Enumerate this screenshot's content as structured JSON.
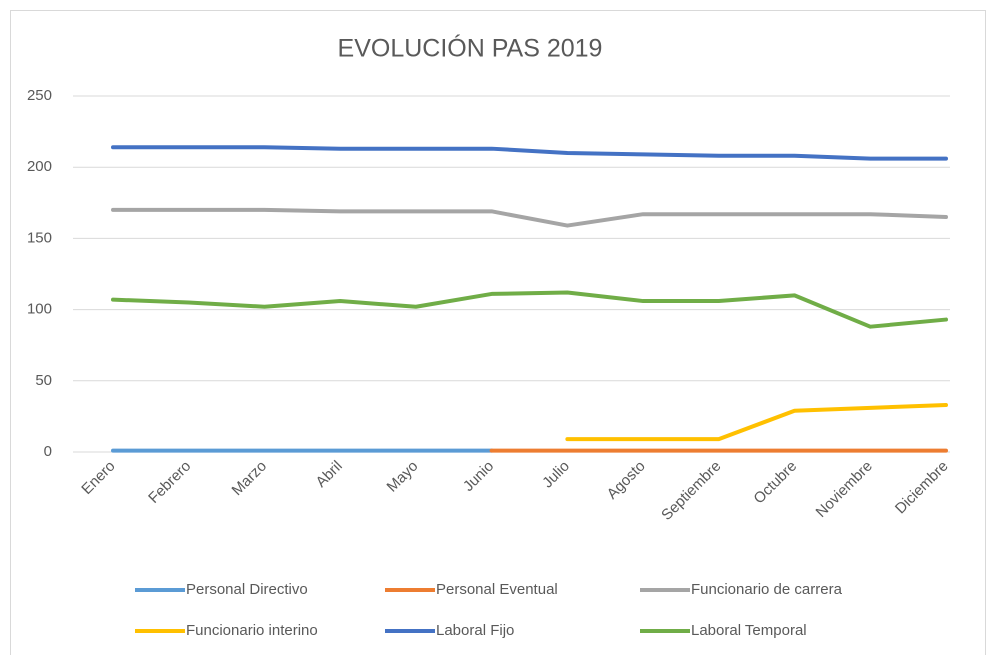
{
  "chart_data": {
    "type": "line",
    "title": "EVOLUCIÓN PAS 2019",
    "categories": [
      "Enero",
      "Febrero",
      "Marzo",
      "Abril",
      "Mayo",
      "Junio",
      "Julio",
      "Agosto",
      "Septiembre",
      "Octubre",
      "Noviembre",
      "Diciembre"
    ],
    "series": [
      {
        "name": "Personal Directivo",
        "color": "#5b9bd5",
        "values": [
          1,
          1,
          1,
          1,
          1,
          1,
          null,
          null,
          null,
          null,
          null,
          null
        ]
      },
      {
        "name": "Personal Eventual",
        "color": "#ed7d31",
        "values": [
          null,
          null,
          null,
          null,
          null,
          1,
          1,
          1,
          1,
          1,
          1,
          1
        ]
      },
      {
        "name": "Funcionario de carrera",
        "color": "#a5a5a5",
        "values": [
          170,
          170,
          170,
          169,
          169,
          169,
          159,
          167,
          167,
          167,
          167,
          165
        ]
      },
      {
        "name": "Funcionario interino",
        "color": "#ffc000",
        "values": [
          null,
          null,
          null,
          null,
          null,
          null,
          9,
          9,
          9,
          29,
          31,
          33
        ]
      },
      {
        "name": "Laboral Fijo",
        "color": "#4472c4",
        "values": [
          214,
          214,
          214,
          213,
          213,
          213,
          210,
          209,
          208,
          208,
          206,
          206
        ]
      },
      {
        "name": "Laboral Temporal",
        "color": "#70ad47",
        "values": [
          107,
          105,
          102,
          106,
          102,
          111,
          112,
          106,
          106,
          110,
          88,
          93
        ]
      }
    ],
    "ylim": [
      0,
      250
    ],
    "yticks": [
      0,
      50,
      100,
      150,
      200,
      250
    ],
    "grid": true
  }
}
